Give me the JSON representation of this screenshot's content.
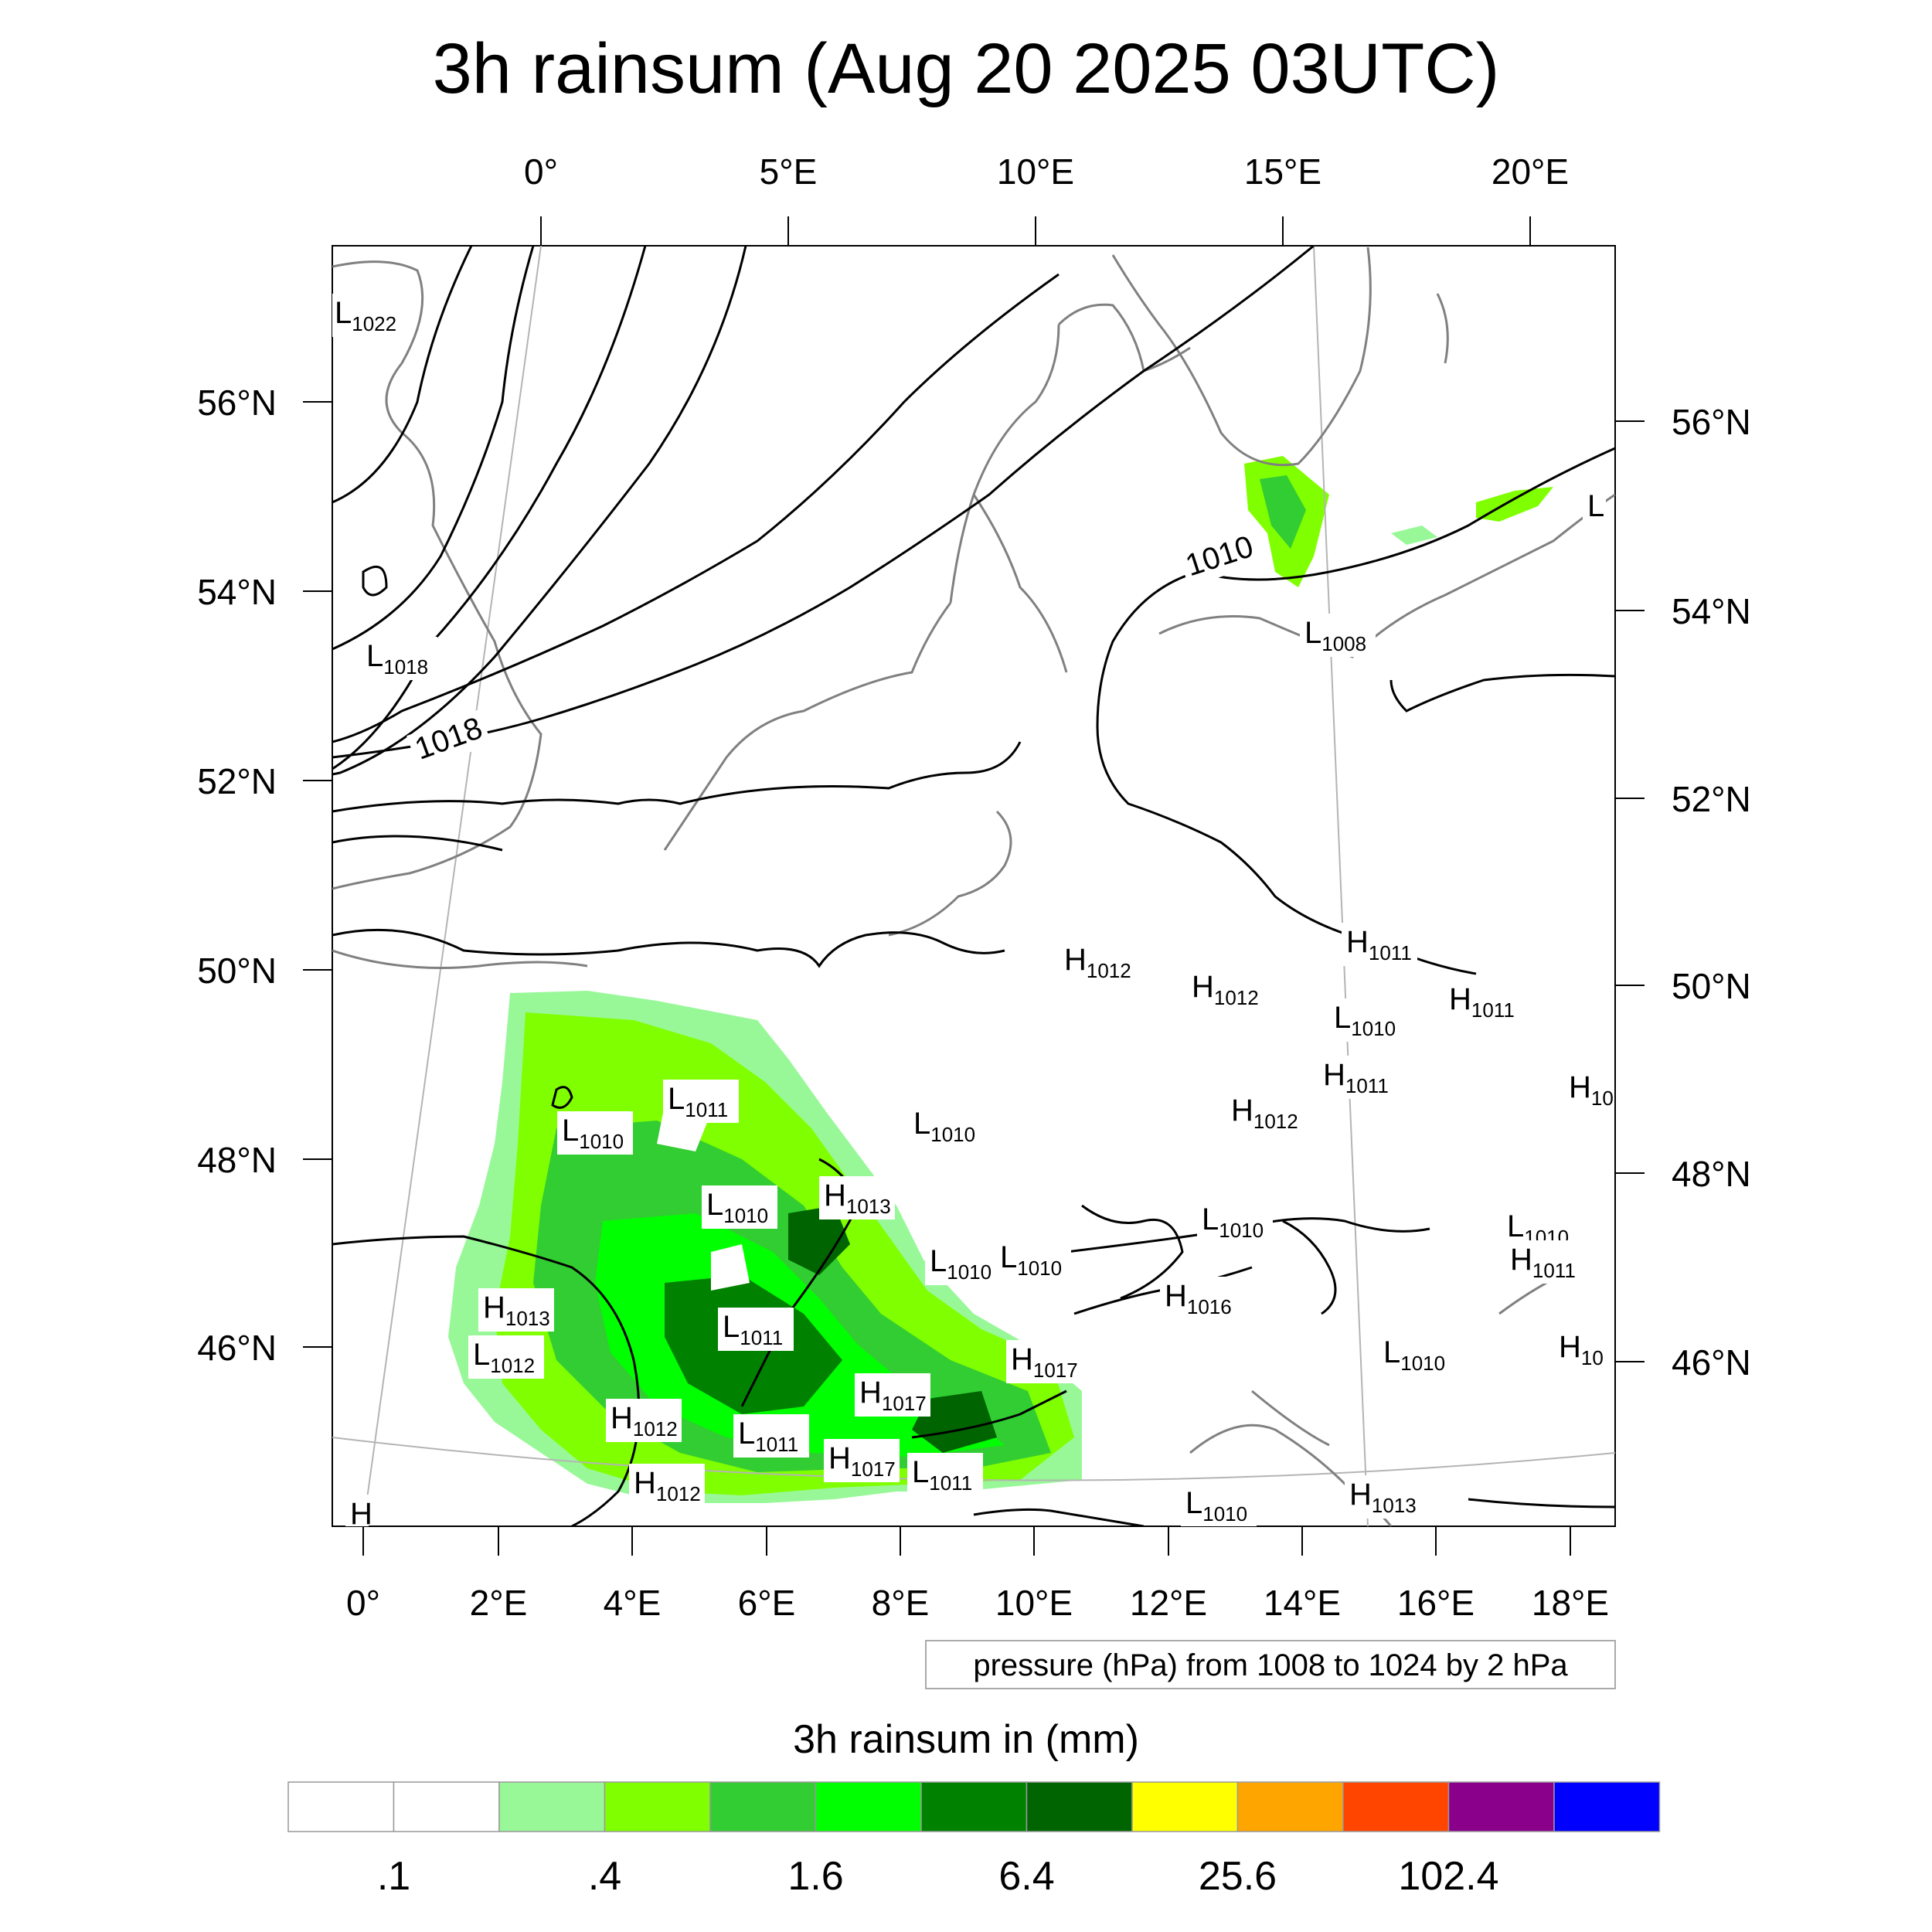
{
  "title": "3h rainsum (Aug 20 2025 03UTC)",
  "top_lon_labels": [
    "0°",
    "5°E",
    "10°E",
    "15°E",
    "20°E"
  ],
  "bottom_lon_labels": [
    "0°",
    "2°E",
    "4°E",
    "6°E",
    "8°E",
    "10°E",
    "12°E",
    "14°E",
    "16°E",
    "18°E"
  ],
  "left_lat_labels": [
    "56°N",
    "54°N",
    "52°N",
    "50°N",
    "48°N",
    "46°N"
  ],
  "right_lat_labels": [
    "56°N",
    "54°N",
    "52°N",
    "50°N",
    "48°N",
    "46°N"
  ],
  "contour_note": "pressure (hPa) from 1008 to 1024 by 2 hPa",
  "colorbar": {
    "title": "3h rainsum in (mm)",
    "colors": [
      "#ffffff",
      "#ffffff",
      "#98f898",
      "#80ff00",
      "#32cd32",
      "#00ff00",
      "#008200",
      "#006400",
      "#ffff00",
      "#ffa500",
      "#ff4500",
      "#8b008b",
      "#0000ff"
    ],
    "labels": [
      ".1",
      ".4",
      "1.6",
      "6.4",
      "25.6",
      "102.4"
    ]
  },
  "isobar_labels": [
    "1018",
    "1010"
  ],
  "pressure_centers": [
    {
      "type": "L",
      "value": "1022"
    },
    {
      "type": "L",
      "value": "1018"
    },
    {
      "type": "L",
      "value": "1008"
    },
    {
      "type": "L",
      "value": ""
    },
    {
      "type": "H",
      "value": "1012"
    },
    {
      "type": "H",
      "value": "1012"
    },
    {
      "type": "H",
      "value": "1011"
    },
    {
      "type": "H",
      "value": "1011"
    },
    {
      "type": "L",
      "value": "1010"
    },
    {
      "type": "H",
      "value": "1011"
    },
    {
      "type": "H",
      "value": "1012"
    },
    {
      "type": "H",
      "value": "10"
    },
    {
      "type": "L",
      "value": "1011"
    },
    {
      "type": "L",
      "value": "1010"
    },
    {
      "type": "L",
      "value": "1010"
    },
    {
      "type": "L",
      "value": "1010"
    },
    {
      "type": "H",
      "value": "1013"
    },
    {
      "type": "L",
      "value": "1010"
    },
    {
      "type": "L",
      "value": "1010"
    },
    {
      "type": "L",
      "value": "1010"
    },
    {
      "type": "L",
      "value": "1010"
    },
    {
      "type": "H",
      "value": "1011"
    },
    {
      "type": "H",
      "value": "1016"
    },
    {
      "type": "H",
      "value": "1013"
    },
    {
      "type": "L",
      "value": "1011"
    },
    {
      "type": "L",
      "value": "1012"
    },
    {
      "type": "H",
      "value": "1017"
    },
    {
      "type": "L",
      "value": "1010"
    },
    {
      "type": "H",
      "value": "10"
    },
    {
      "type": "H",
      "value": "1017"
    },
    {
      "type": "H",
      "value": "1012"
    },
    {
      "type": "L",
      "value": "1011"
    },
    {
      "type": "H",
      "value": "1017"
    },
    {
      "type": "L",
      "value": "1011"
    },
    {
      "type": "H",
      "value": "1012"
    },
    {
      "type": "L",
      "value": "1010"
    },
    {
      "type": "H",
      "value": "1013"
    },
    {
      "type": "H",
      "value": ""
    }
  ]
}
